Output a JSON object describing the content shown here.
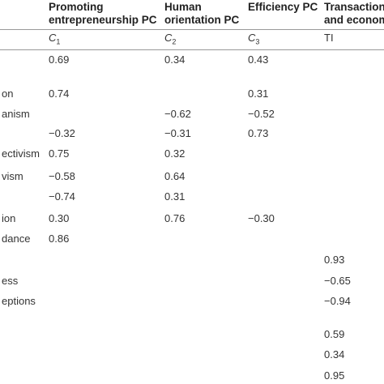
{
  "table": {
    "header": [
      null,
      "Promoting entrepreneurship PC",
      "Human orientation PC",
      "Efficiency PC",
      "Transaction and econom"
    ],
    "subheader": [
      null,
      "C1",
      "C2",
      "C3",
      "TI"
    ],
    "rows": [
      [
        null,
        "0.69",
        "0.34",
        "0.43",
        null
      ],
      [
        "on",
        "0.74",
        null,
        "0.31",
        null
      ],
      [
        "anism",
        null,
        "−0.62",
        "−0.52",
        null
      ],
      [
        null,
        "−0.32",
        "−0.31",
        "0.73",
        null
      ],
      [
        "ectivism",
        "0.75",
        "0.32",
        null,
        null
      ],
      [
        "vism",
        "−0.58",
        "0.64",
        null,
        null
      ],
      [
        null,
        "−0.74",
        "0.31",
        null,
        null
      ],
      [
        "ion",
        "0.30",
        "0.76",
        "−0.30",
        null
      ],
      [
        "dance",
        "0.86",
        null,
        null,
        null
      ],
      [
        null,
        null,
        null,
        null,
        "0.93"
      ],
      [
        "ess",
        null,
        null,
        null,
        "−0.65"
      ],
      [
        "eptions",
        null,
        null,
        null,
        "−0.94"
      ],
      [
        null,
        null,
        null,
        null,
        "0.59"
      ],
      [
        null,
        null,
        null,
        null,
        "0.34"
      ],
      [
        null,
        null,
        null,
        null,
        "0.95"
      ]
    ]
  }
}
